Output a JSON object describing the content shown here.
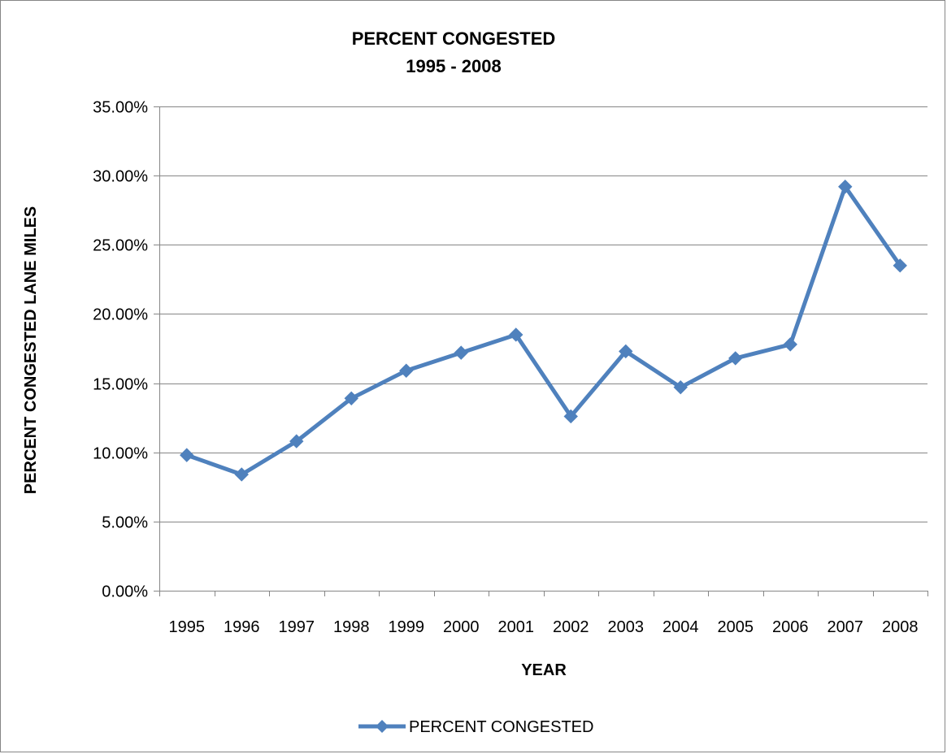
{
  "chart_data": {
    "type": "line",
    "title": "PERCENT CONGESTED",
    "subtitle": "1995 - 2008",
    "xlabel": "YEAR",
    "ylabel": "PERCENT CONGESTED LANE MILES",
    "categories": [
      "1995",
      "1996",
      "1997",
      "1998",
      "1999",
      "2000",
      "2001",
      "2002",
      "2003",
      "2004",
      "2005",
      "2006",
      "2007",
      "2008"
    ],
    "series": [
      {
        "name": "PERCENT CONGESTED",
        "color": "#4F81BD",
        "marker": "diamond",
        "values": [
          9.8,
          8.4,
          10.8,
          13.9,
          15.9,
          17.2,
          18.5,
          12.6,
          17.3,
          14.7,
          16.8,
          17.8,
          29.2,
          23.5
        ]
      }
    ],
    "ylim": [
      0,
      35
    ],
    "yticks": [
      0,
      5,
      10,
      15,
      20,
      25,
      30,
      35
    ],
    "ytick_labels": [
      "0.00%",
      "5.00%",
      "10.00%",
      "15.00%",
      "20.00%",
      "25.00%",
      "30.00%",
      "35.00%"
    ],
    "grid": true,
    "legend_position": "bottom",
    "colors": {
      "gridline": "#868686",
      "axis": "#868686",
      "border": "#868686"
    }
  }
}
